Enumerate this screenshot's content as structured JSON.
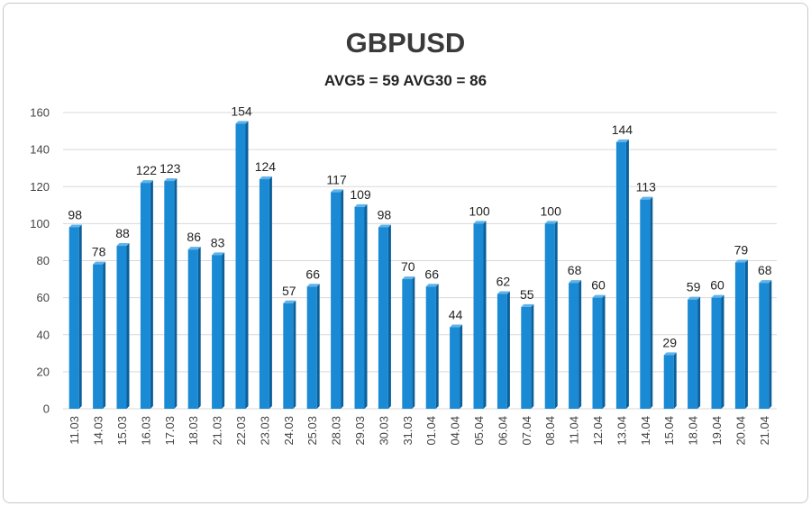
{
  "chart_data": {
    "type": "bar",
    "title": "GBPUSD",
    "subtitle": "AVG5 = 59 AVG30 = 86",
    "categories": [
      "11.03",
      "14.03",
      "15.03",
      "16.03",
      "17.03",
      "18.03",
      "21.03",
      "22.03",
      "23.03",
      "24.03",
      "25.03",
      "28.03",
      "29.03",
      "30.03",
      "31.03",
      "01.04",
      "04.04",
      "05.04",
      "06.04",
      "07.04",
      "08.04",
      "11.04",
      "12.04",
      "13.04",
      "14.04",
      "15.04",
      "18.04",
      "19.04",
      "20.04",
      "21.04"
    ],
    "values": [
      98,
      78,
      88,
      122,
      123,
      86,
      83,
      154,
      124,
      57,
      66,
      117,
      109,
      98,
      70,
      66,
      44,
      100,
      62,
      55,
      100,
      68,
      60,
      144,
      113,
      29,
      59,
      60,
      79,
      68
    ],
    "y_ticks": [
      "0",
      "20",
      "40",
      "60",
      "80",
      "100",
      "120",
      "140",
      "160"
    ],
    "ylim": [
      0,
      160
    ],
    "grid": true,
    "legend": "none",
    "colors": {
      "bar": "#1a8ad4",
      "bar_dark": "#0b5f9a",
      "bar_light": "#5fb3ea",
      "grid": "#d9d9d9"
    }
  }
}
